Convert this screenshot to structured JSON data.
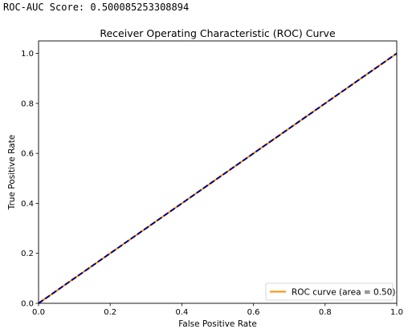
{
  "output_text": "ROC-AUC Score: 0.500085253308894",
  "chart_data": {
    "type": "line",
    "title": "Receiver Operating Characteristic (ROC) Curve",
    "xlabel": "False Positive Rate",
    "ylabel": "True Positive Rate",
    "xlim": [
      0.0,
      1.0
    ],
    "ylim": [
      0.0,
      1.05
    ],
    "xticks": [
      0.0,
      0.2,
      0.4,
      0.6,
      0.8,
      1.0
    ],
    "xtick_labels": [
      "0.0",
      "0.2",
      "0.4",
      "0.6",
      "0.8",
      "1.0"
    ],
    "yticks": [
      0.0,
      0.2,
      0.4,
      0.6,
      0.8,
      1.0
    ],
    "ytick_labels": [
      "0.0",
      "0.2",
      "0.4",
      "0.6",
      "0.8",
      "1.0"
    ],
    "grid": false,
    "legend_position": "lower right",
    "series": [
      {
        "name": "ROC curve (area = 0.50)",
        "color": "#ff8c00",
        "style": "solid",
        "x": [
          0.0,
          1.0
        ],
        "y": [
          0.0,
          1.0
        ]
      },
      {
        "color": "#000080",
        "style": "dashed",
        "x": [
          0.0,
          1.0
        ],
        "y": [
          0.0,
          1.0
        ]
      }
    ]
  }
}
